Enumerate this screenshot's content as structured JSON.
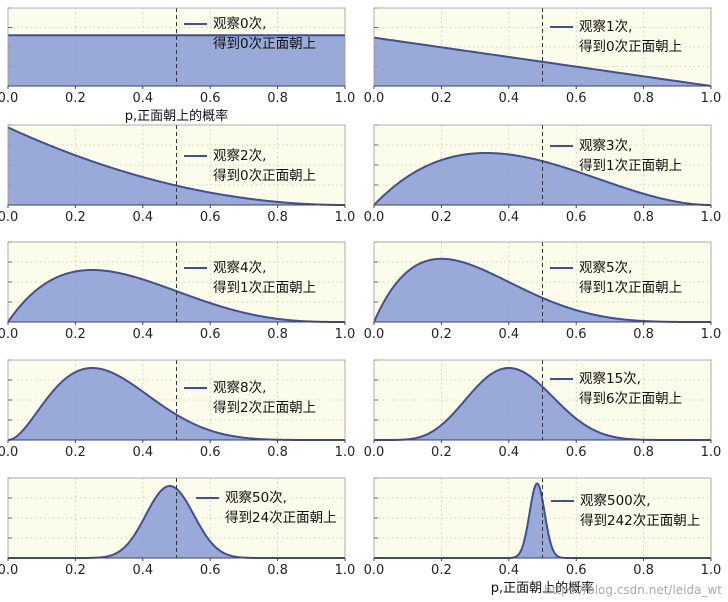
{
  "colors": {
    "panel_bg": "#fcfcea",
    "fill": "#8ea0d6",
    "line": "#3d4f9e",
    "grid": "#c7c7b0",
    "frame": "#999999",
    "marker_line": "#333333"
  },
  "chart_data": [
    {
      "type": "area",
      "legend": [
        "观察0次,",
        "得到0次正面朝上"
      ],
      "trials": 0,
      "heads": 0,
      "xlim": [
        0.0,
        1.0
      ],
      "xticks": [
        "0.0",
        "0.2",
        "0.4",
        "0.6",
        "0.8",
        "1.0"
      ],
      "xlabel": "p,正面朝上的概率",
      "vline": 0.5,
      "grid": true,
      "legend_position": "top-right"
    },
    {
      "type": "area",
      "legend": [
        "观察1次,",
        "得到0次正面朝上"
      ],
      "trials": 1,
      "heads": 0,
      "xlim": [
        0.0,
        1.0
      ],
      "xticks": [
        "0.0",
        "0.2",
        "0.4",
        "0.6",
        "0.8",
        "1.0"
      ],
      "xlabel": "",
      "vline": 0.5,
      "grid": true,
      "legend_position": "top-right"
    },
    {
      "type": "area",
      "legend": [
        "观察2次,",
        "得到0次正面朝上"
      ],
      "trials": 2,
      "heads": 0,
      "xlim": [
        0.0,
        1.0
      ],
      "xticks": [
        "0.0",
        "0.2",
        "0.4",
        "0.6",
        "0.8",
        "1.0"
      ],
      "xlabel": "",
      "vline": 0.5,
      "grid": true,
      "legend_position": "top-right"
    },
    {
      "type": "area",
      "legend": [
        "观察3次,",
        "得到1次正面朝上"
      ],
      "trials": 3,
      "heads": 1,
      "xlim": [
        0.0,
        1.0
      ],
      "xticks": [
        "0.0",
        "0.2",
        "0.4",
        "0.6",
        "0.8",
        "1.0"
      ],
      "xlabel": "",
      "vline": 0.5,
      "grid": true,
      "legend_position": "top-right"
    },
    {
      "type": "area",
      "legend": [
        "观察4次,",
        "得到1次正面朝上"
      ],
      "trials": 4,
      "heads": 1,
      "xlim": [
        0.0,
        1.0
      ],
      "xticks": [
        "0.0",
        "0.2",
        "0.4",
        "0.6",
        "0.8",
        "1.0"
      ],
      "xlabel": "",
      "vline": 0.5,
      "grid": true,
      "legend_position": "top-right"
    },
    {
      "type": "area",
      "legend": [
        "观察5次,",
        "得到1次正面朝上"
      ],
      "trials": 5,
      "heads": 1,
      "xlim": [
        0.0,
        1.0
      ],
      "xticks": [
        "0.0",
        "0.2",
        "0.4",
        "0.6",
        "0.8",
        "1.0"
      ],
      "xlabel": "",
      "vline": 0.5,
      "grid": true,
      "legend_position": "top-right"
    },
    {
      "type": "area",
      "legend": [
        "观察8次,",
        "得到2次正面朝上"
      ],
      "trials": 8,
      "heads": 2,
      "xlim": [
        0.0,
        1.0
      ],
      "xticks": [
        "0.0",
        "0.2",
        "0.4",
        "0.6",
        "0.8",
        "1.0"
      ],
      "xlabel": "",
      "vline": 0.5,
      "grid": true,
      "legend_position": "top-right"
    },
    {
      "type": "area",
      "legend": [
        "观察15次,",
        "得到6次正面朝上"
      ],
      "trials": 15,
      "heads": 6,
      "xlim": [
        0.0,
        1.0
      ],
      "xticks": [
        "0.0",
        "0.2",
        "0.4",
        "0.6",
        "0.8",
        "1.0"
      ],
      "xlabel": "",
      "vline": 0.5,
      "grid": true,
      "legend_position": "top-right"
    },
    {
      "type": "area",
      "legend": [
        "观察50次,",
        "得到24次正面朝上"
      ],
      "trials": 50,
      "heads": 24,
      "xlim": [
        0.0,
        1.0
      ],
      "xticks": [
        "0.0",
        "0.2",
        "0.4",
        "0.6",
        "0.8",
        "1.0"
      ],
      "xlabel": "",
      "vline": 0.5,
      "grid": true,
      "legend_position": "top-right"
    },
    {
      "type": "area",
      "legend": [
        "观察500次,",
        "得到242次正面朝上"
      ],
      "trials": 500,
      "heads": 242,
      "xlim": [
        0.0,
        1.0
      ],
      "xticks": [
        "0.0",
        "0.2",
        "0.4",
        "0.6",
        "0.8",
        "1.0"
      ],
      "xlabel": "p,正面朝上的概率",
      "vline": 0.5,
      "grid": true,
      "legend_position": "top-right"
    }
  ],
  "watermark": "https://blog.csdn.net/leida_wt"
}
